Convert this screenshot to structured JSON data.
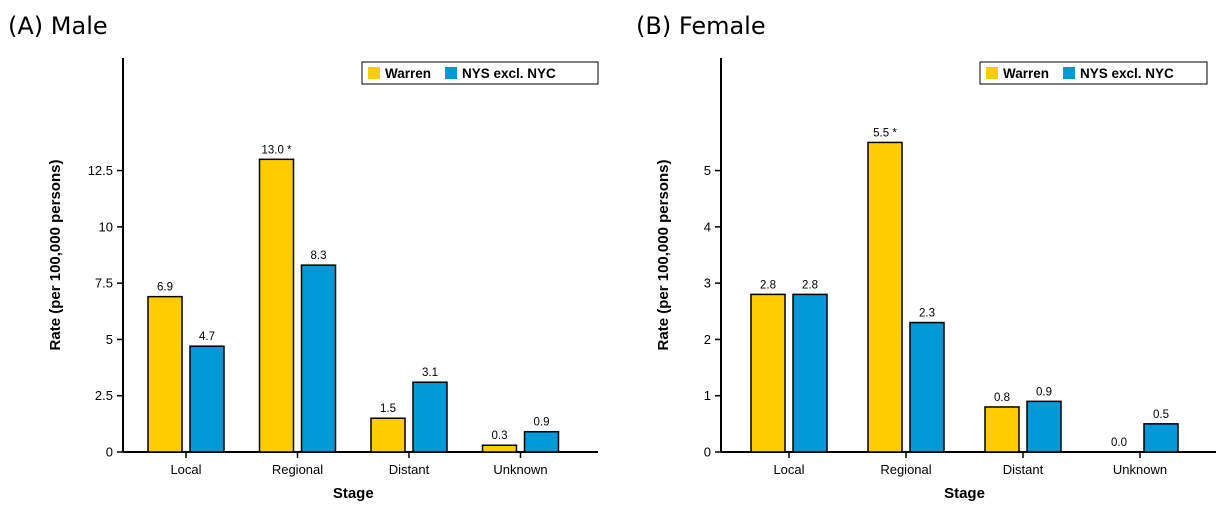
{
  "colors": {
    "warren": "#FFCC00",
    "nys": "#0099D8"
  },
  "chart_data": [
    {
      "type": "bar",
      "title": "(A) Male",
      "xlabel": "Stage",
      "ylabel": "Rate (per 100,000 persons)",
      "categories": [
        "Local",
        "Regional",
        "Distant",
        "Unknown"
      ],
      "ylim": [
        0,
        17.5
      ],
      "yticks": [
        0,
        2.5,
        5,
        7.5,
        10,
        12.5
      ],
      "ytick_labels": [
        "0",
        "2.5",
        "5",
        "7.5",
        "10",
        "12.5"
      ],
      "legend_position": "top-right",
      "grid": false,
      "series": [
        {
          "name": "Warren",
          "values": [
            6.9,
            13.0,
            1.5,
            0.3
          ],
          "labels": [
            "6.9",
            "13.0 *",
            "1.5",
            "0.3"
          ]
        },
        {
          "name": "NYS excl. NYC",
          "values": [
            4.7,
            8.3,
            3.1,
            0.9
          ],
          "labels": [
            "4.7",
            "8.3",
            "3.1",
            "0.9"
          ]
        }
      ]
    },
    {
      "type": "bar",
      "title": "(B) Female",
      "xlabel": "Stage",
      "ylabel": "Rate (per 100,000 persons)",
      "categories": [
        "Local",
        "Regional",
        "Distant",
        "Unknown"
      ],
      "ylim": [
        0,
        7
      ],
      "yticks": [
        0,
        1,
        2,
        3,
        4,
        5
      ],
      "ytick_labels": [
        "0",
        "1",
        "2",
        "3",
        "4",
        "5"
      ],
      "legend_position": "top-right",
      "grid": false,
      "series": [
        {
          "name": "Warren",
          "values": [
            2.8,
            5.5,
            0.8,
            0.0
          ],
          "labels": [
            "2.8",
            "5.5 *",
            "0.8",
            "0.0"
          ]
        },
        {
          "name": "NYS excl. NYC",
          "values": [
            2.8,
            2.3,
            0.9,
            0.5
          ],
          "labels": [
            "2.8",
            "2.3",
            "0.9",
            "0.5"
          ]
        }
      ]
    }
  ]
}
